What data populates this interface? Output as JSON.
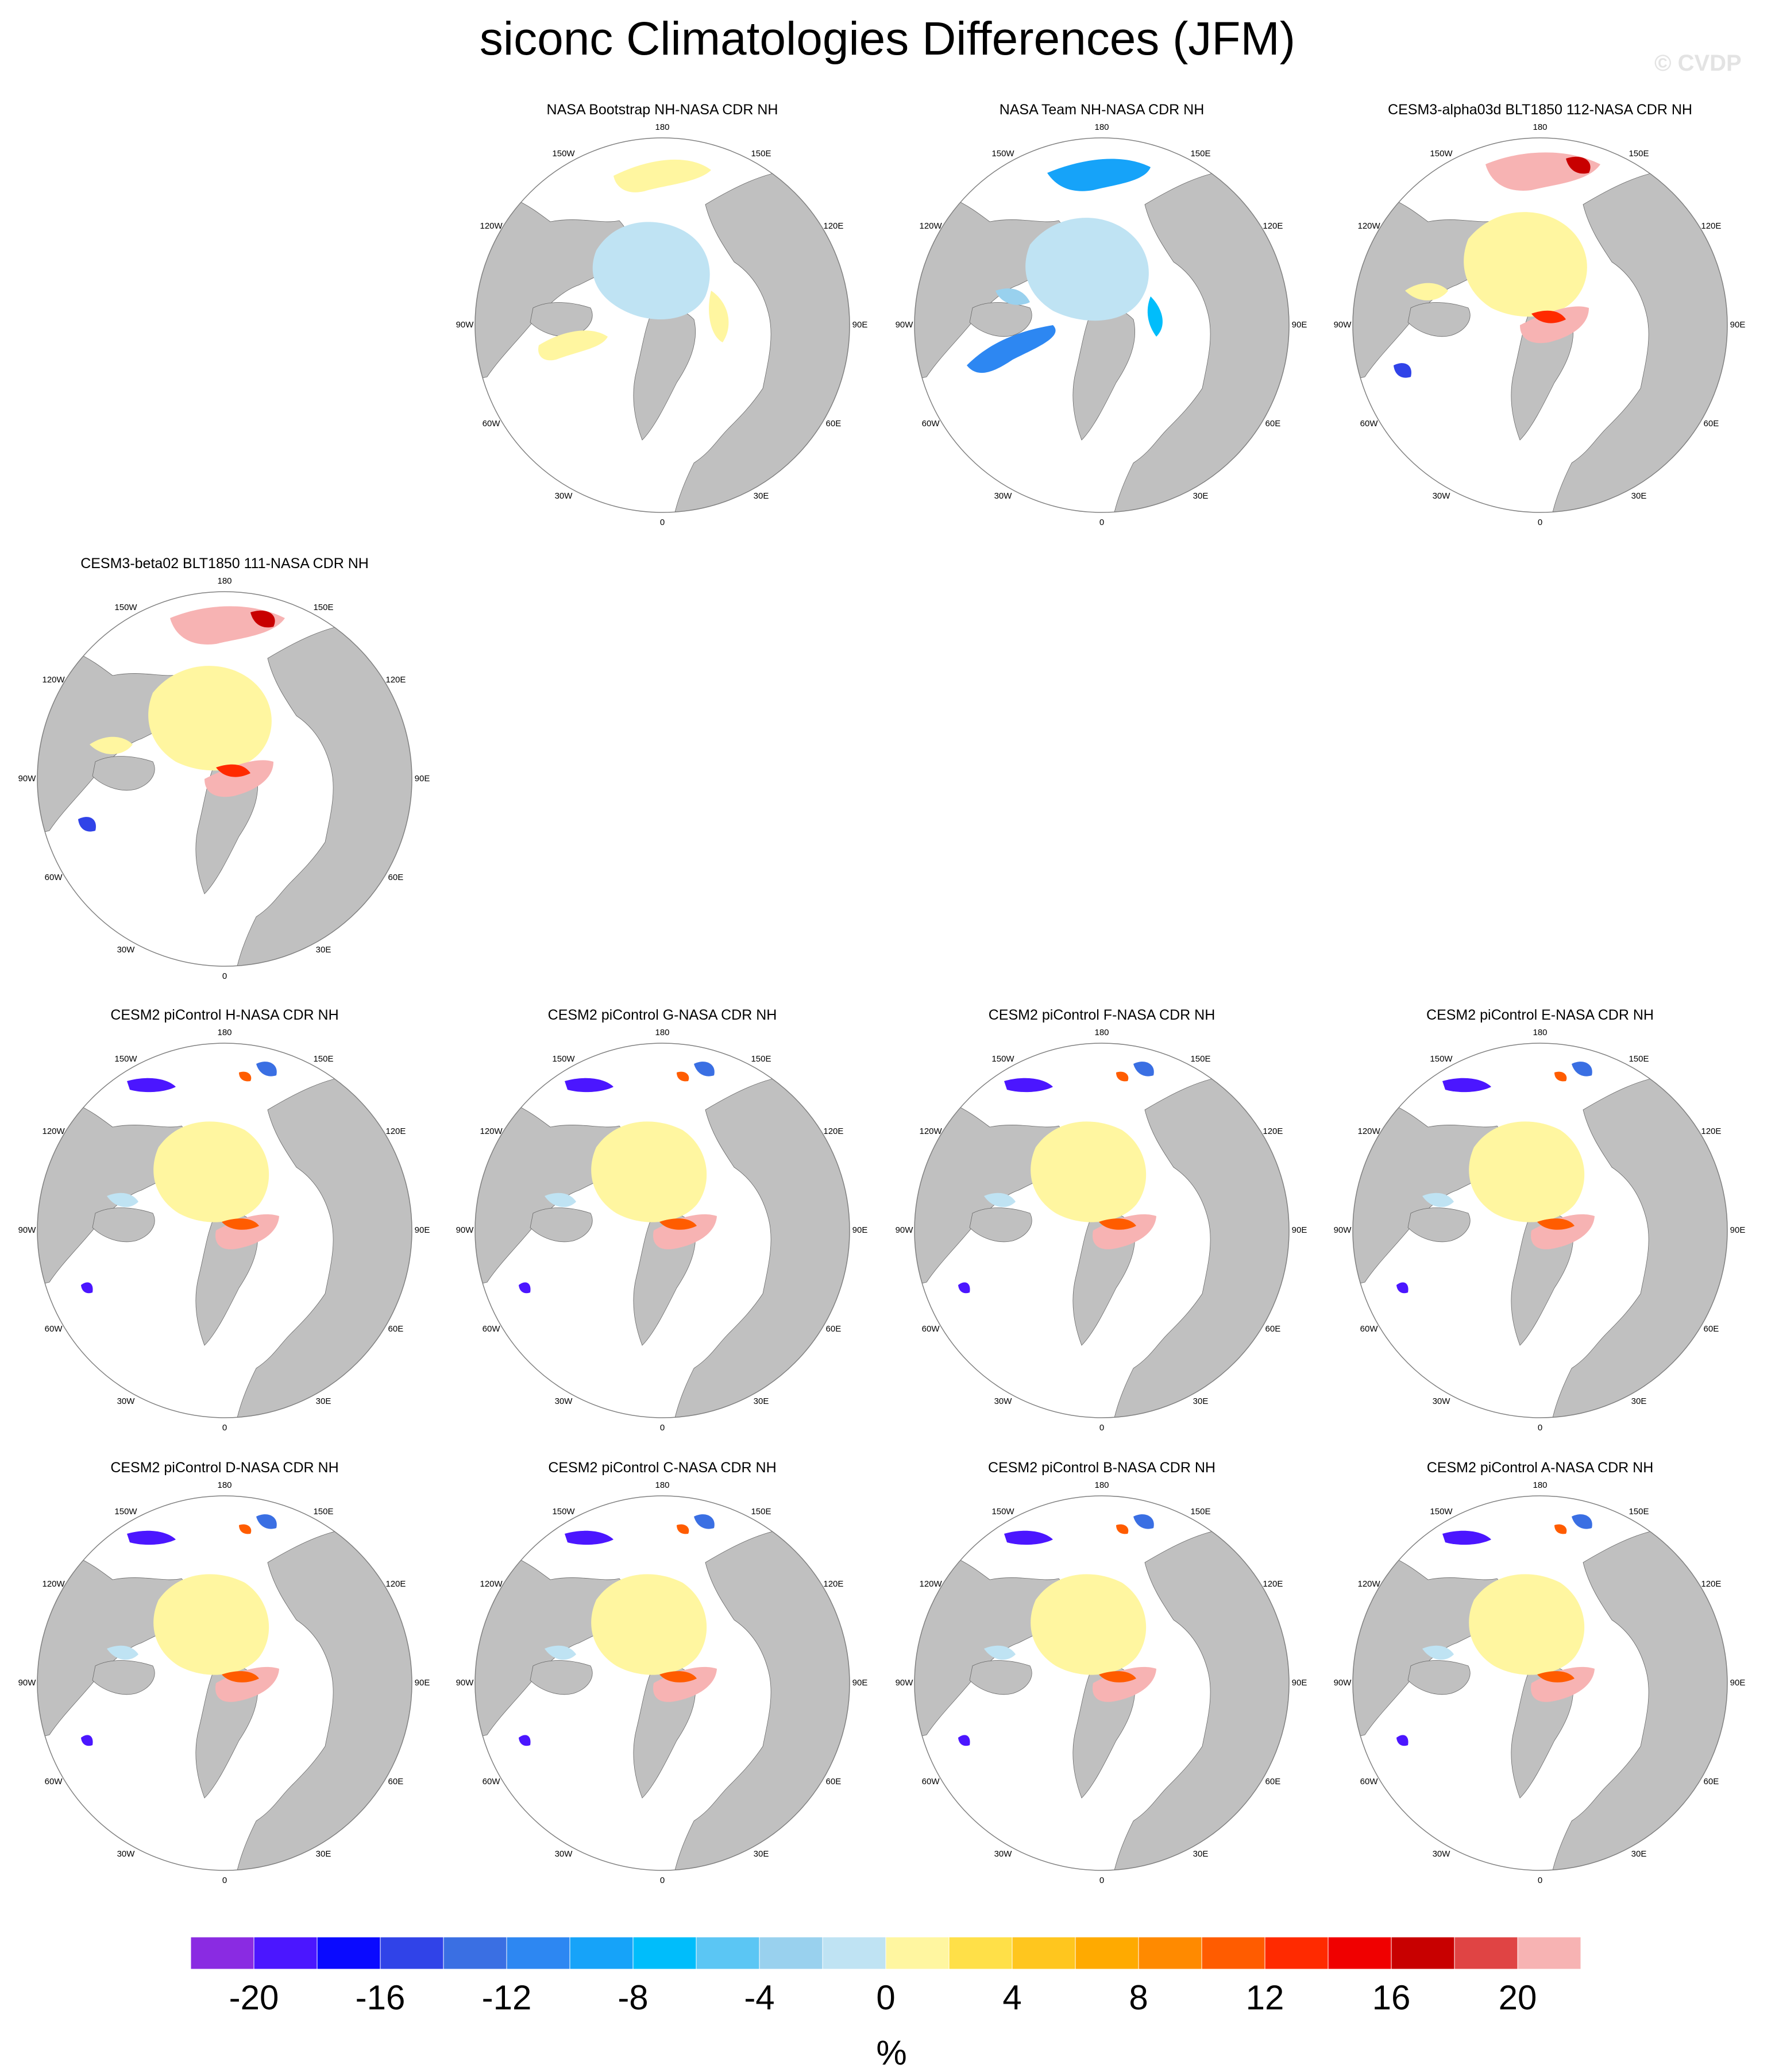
{
  "title": "siconc Climatologies Differences (JFM)",
  "watermark": "© CVDP",
  "colors": {
    "land": "#c0c0c0",
    "ice_neg_light": "#bfe3f3",
    "ice_pos_light": "#fff6a0",
    "ice_pos_pink": "#f7b3b3"
  },
  "map_lon_labels": [
    "180",
    "150E",
    "120E",
    "90E",
    "60E",
    "30E",
    "0",
    "30W",
    "60W",
    "90W",
    "120W",
    "150W"
  ],
  "panels": [
    {
      "id": "p1",
      "title": "NASA Bootstrap NH-NASA CDR NH",
      "style": "bootstrap"
    },
    {
      "id": "p2",
      "title": "NASA Team NH-NASA CDR NH",
      "style": "team"
    },
    {
      "id": "p3",
      "title": "CESM3-alpha03d BLT1850 112-NASA CDR NH",
      "style": "cesm3"
    },
    {
      "id": "p4",
      "title": "CESM3-beta02 BLT1850 111-NASA CDR NH",
      "style": "cesm3"
    },
    {
      "id": "p5",
      "title": "CESM2 piControl H-NASA CDR NH",
      "style": "cesm2"
    },
    {
      "id": "p6",
      "title": "CESM2 piControl G-NASA CDR NH",
      "style": "cesm2"
    },
    {
      "id": "p7",
      "title": "CESM2 piControl F-NASA CDR NH",
      "style": "cesm2"
    },
    {
      "id": "p8",
      "title": "CESM2 piControl E-NASA CDR NH",
      "style": "cesm2"
    },
    {
      "id": "p9",
      "title": "CESM2 piControl D-NASA CDR NH",
      "style": "cesm2"
    },
    {
      "id": "p10",
      "title": "CESM2 piControl C-NASA CDR NH",
      "style": "cesm2"
    },
    {
      "id": "p11",
      "title": "CESM2 piControl B-NASA CDR NH",
      "style": "cesm2"
    },
    {
      "id": "p12",
      "title": "CESM2 piControl A-NASA CDR NH",
      "style": "cesm2"
    }
  ],
  "chart_data": {
    "type": "heatmap",
    "projection": "north polar stereographic",
    "variable": "siconc",
    "season": "JFM",
    "colorbar": {
      "unit": "%",
      "levels": [
        -22,
        -20,
        -18,
        -16,
        -14,
        -12,
        -10,
        -8,
        -6,
        -4,
        -2,
        0,
        2,
        4,
        6,
        8,
        10,
        12,
        14,
        16,
        18,
        20,
        22
      ],
      "tick_labels": [
        "-20",
        "-16",
        "-12",
        "-8",
        "-4",
        "0",
        "4",
        "8",
        "12",
        "16",
        "20"
      ],
      "colors": [
        "#8a2be2",
        "#4b16ff",
        "#0a0aff",
        "#3043e8",
        "#3a6fe3",
        "#2d87f2",
        "#16a3f9",
        "#00bdfb",
        "#5bc6f4",
        "#99d1ee",
        "#bfe3f3",
        "#fff6a0",
        "#ffe048",
        "#ffc61e",
        "#ffaa00",
        "#ff8a00",
        "#ff5c00",
        "#ff2a00",
        "#f00000",
        "#c80000",
        "#e04444",
        "#f7b3b3"
      ]
    }
  }
}
